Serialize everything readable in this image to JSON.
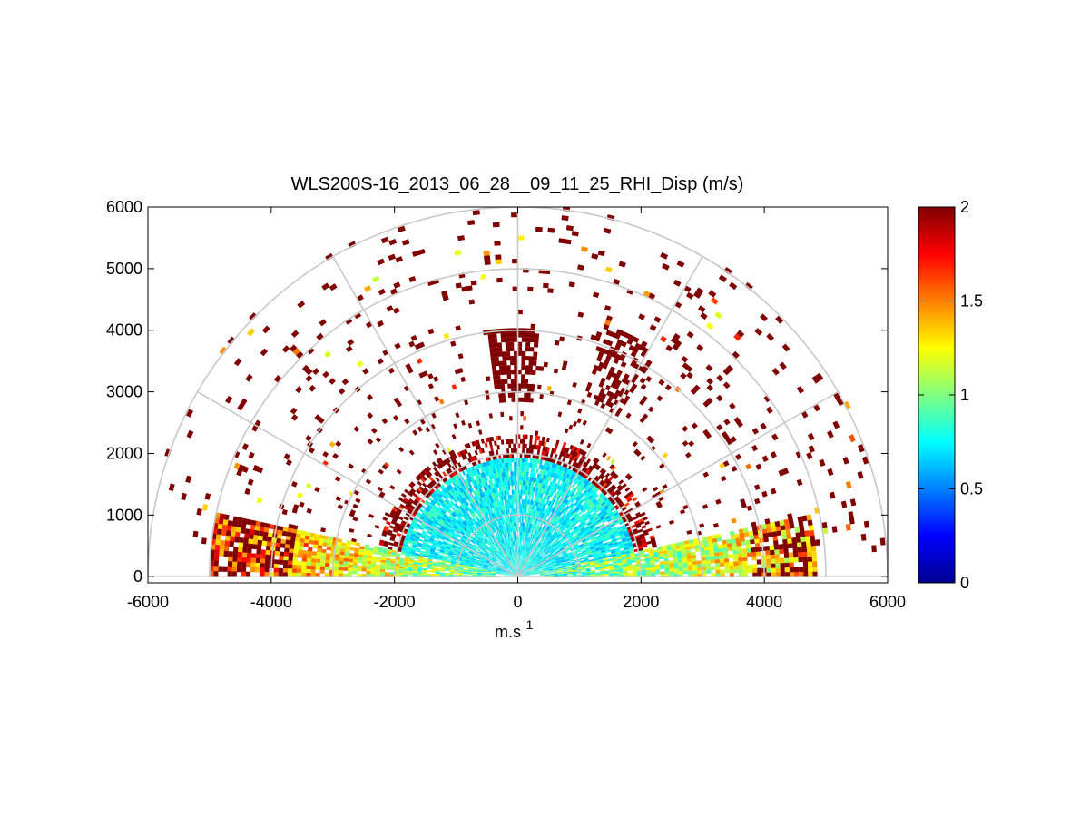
{
  "chart_data": {
    "type": "heatmap",
    "projection": "polar-rhi",
    "title": "WLS200S-16_2013_06_28__09_11_25_RHI_Disp (m/s)",
    "xlabel": "m.s",
    "xlabel_superscript": "-1",
    "ylabel": "",
    "xlim": [
      -6000,
      6000
    ],
    "ylim": [
      -100,
      6000
    ],
    "x_ticks": [
      -6000,
      -4000,
      -2000,
      0,
      2000,
      4000,
      6000
    ],
    "y_ticks": [
      0,
      1000,
      2000,
      3000,
      4000,
      5000,
      6000
    ],
    "x_tick_labels": [
      "-6000",
      "-4000",
      "-2000",
      "0",
      "2000",
      "4000",
      "6000"
    ],
    "y_tick_labels": [
      "0",
      "1000",
      "2000",
      "3000",
      "4000",
      "5000",
      "6000"
    ],
    "polar_grid": {
      "ranges_m": [
        1000,
        2000,
        3000,
        4000,
        5000,
        6000
      ],
      "spokes_deg": [
        0,
        30,
        60,
        90,
        120,
        150,
        180
      ],
      "shown": true
    },
    "colorbar": {
      "colormap": "jet",
      "clim": [
        0,
        2
      ],
      "ticks": [
        0,
        0.5,
        1,
        1.5,
        2
      ],
      "tick_labels": [
        "0",
        "0.5",
        "1",
        "1.5",
        "2"
      ],
      "placement": "right"
    },
    "regions": [
      {
        "description": "near-field low-elevation cone",
        "range_m": [
          0,
          1900
        ],
        "elevation_deg": [
          8,
          172
        ],
        "typical_value": 0.75
      },
      {
        "description": "low-elevation sector, right",
        "range_m": [
          1000,
          4800
        ],
        "elevation_deg": [
          2,
          12
        ],
        "typical_value": 0.9
      },
      {
        "description": "low-elevation sector, left",
        "range_m": [
          1000,
          5000
        ],
        "elevation_deg": [
          168,
          178
        ],
        "typical_value": 1.0
      },
      {
        "description": "saturated fringe",
        "range_m": [
          1900,
          2300
        ],
        "elevation_deg": [
          10,
          170
        ],
        "typical_value": 2.0
      },
      {
        "description": "vertical column",
        "range_m": [
          2800,
          4000
        ],
        "elevation_deg": [
          85,
          97
        ],
        "typical_value": 2.0
      },
      {
        "description": "column ~65 deg",
        "range_m": [
          3000,
          4300
        ],
        "elevation_deg": [
          58,
          70
        ],
        "typical_value": 2.0
      },
      {
        "description": "scattered high-range gates",
        "range_m": [
          2400,
          6000
        ],
        "elevation_deg": [
          5,
          175
        ],
        "typical_value": 2.0
      }
    ]
  }
}
